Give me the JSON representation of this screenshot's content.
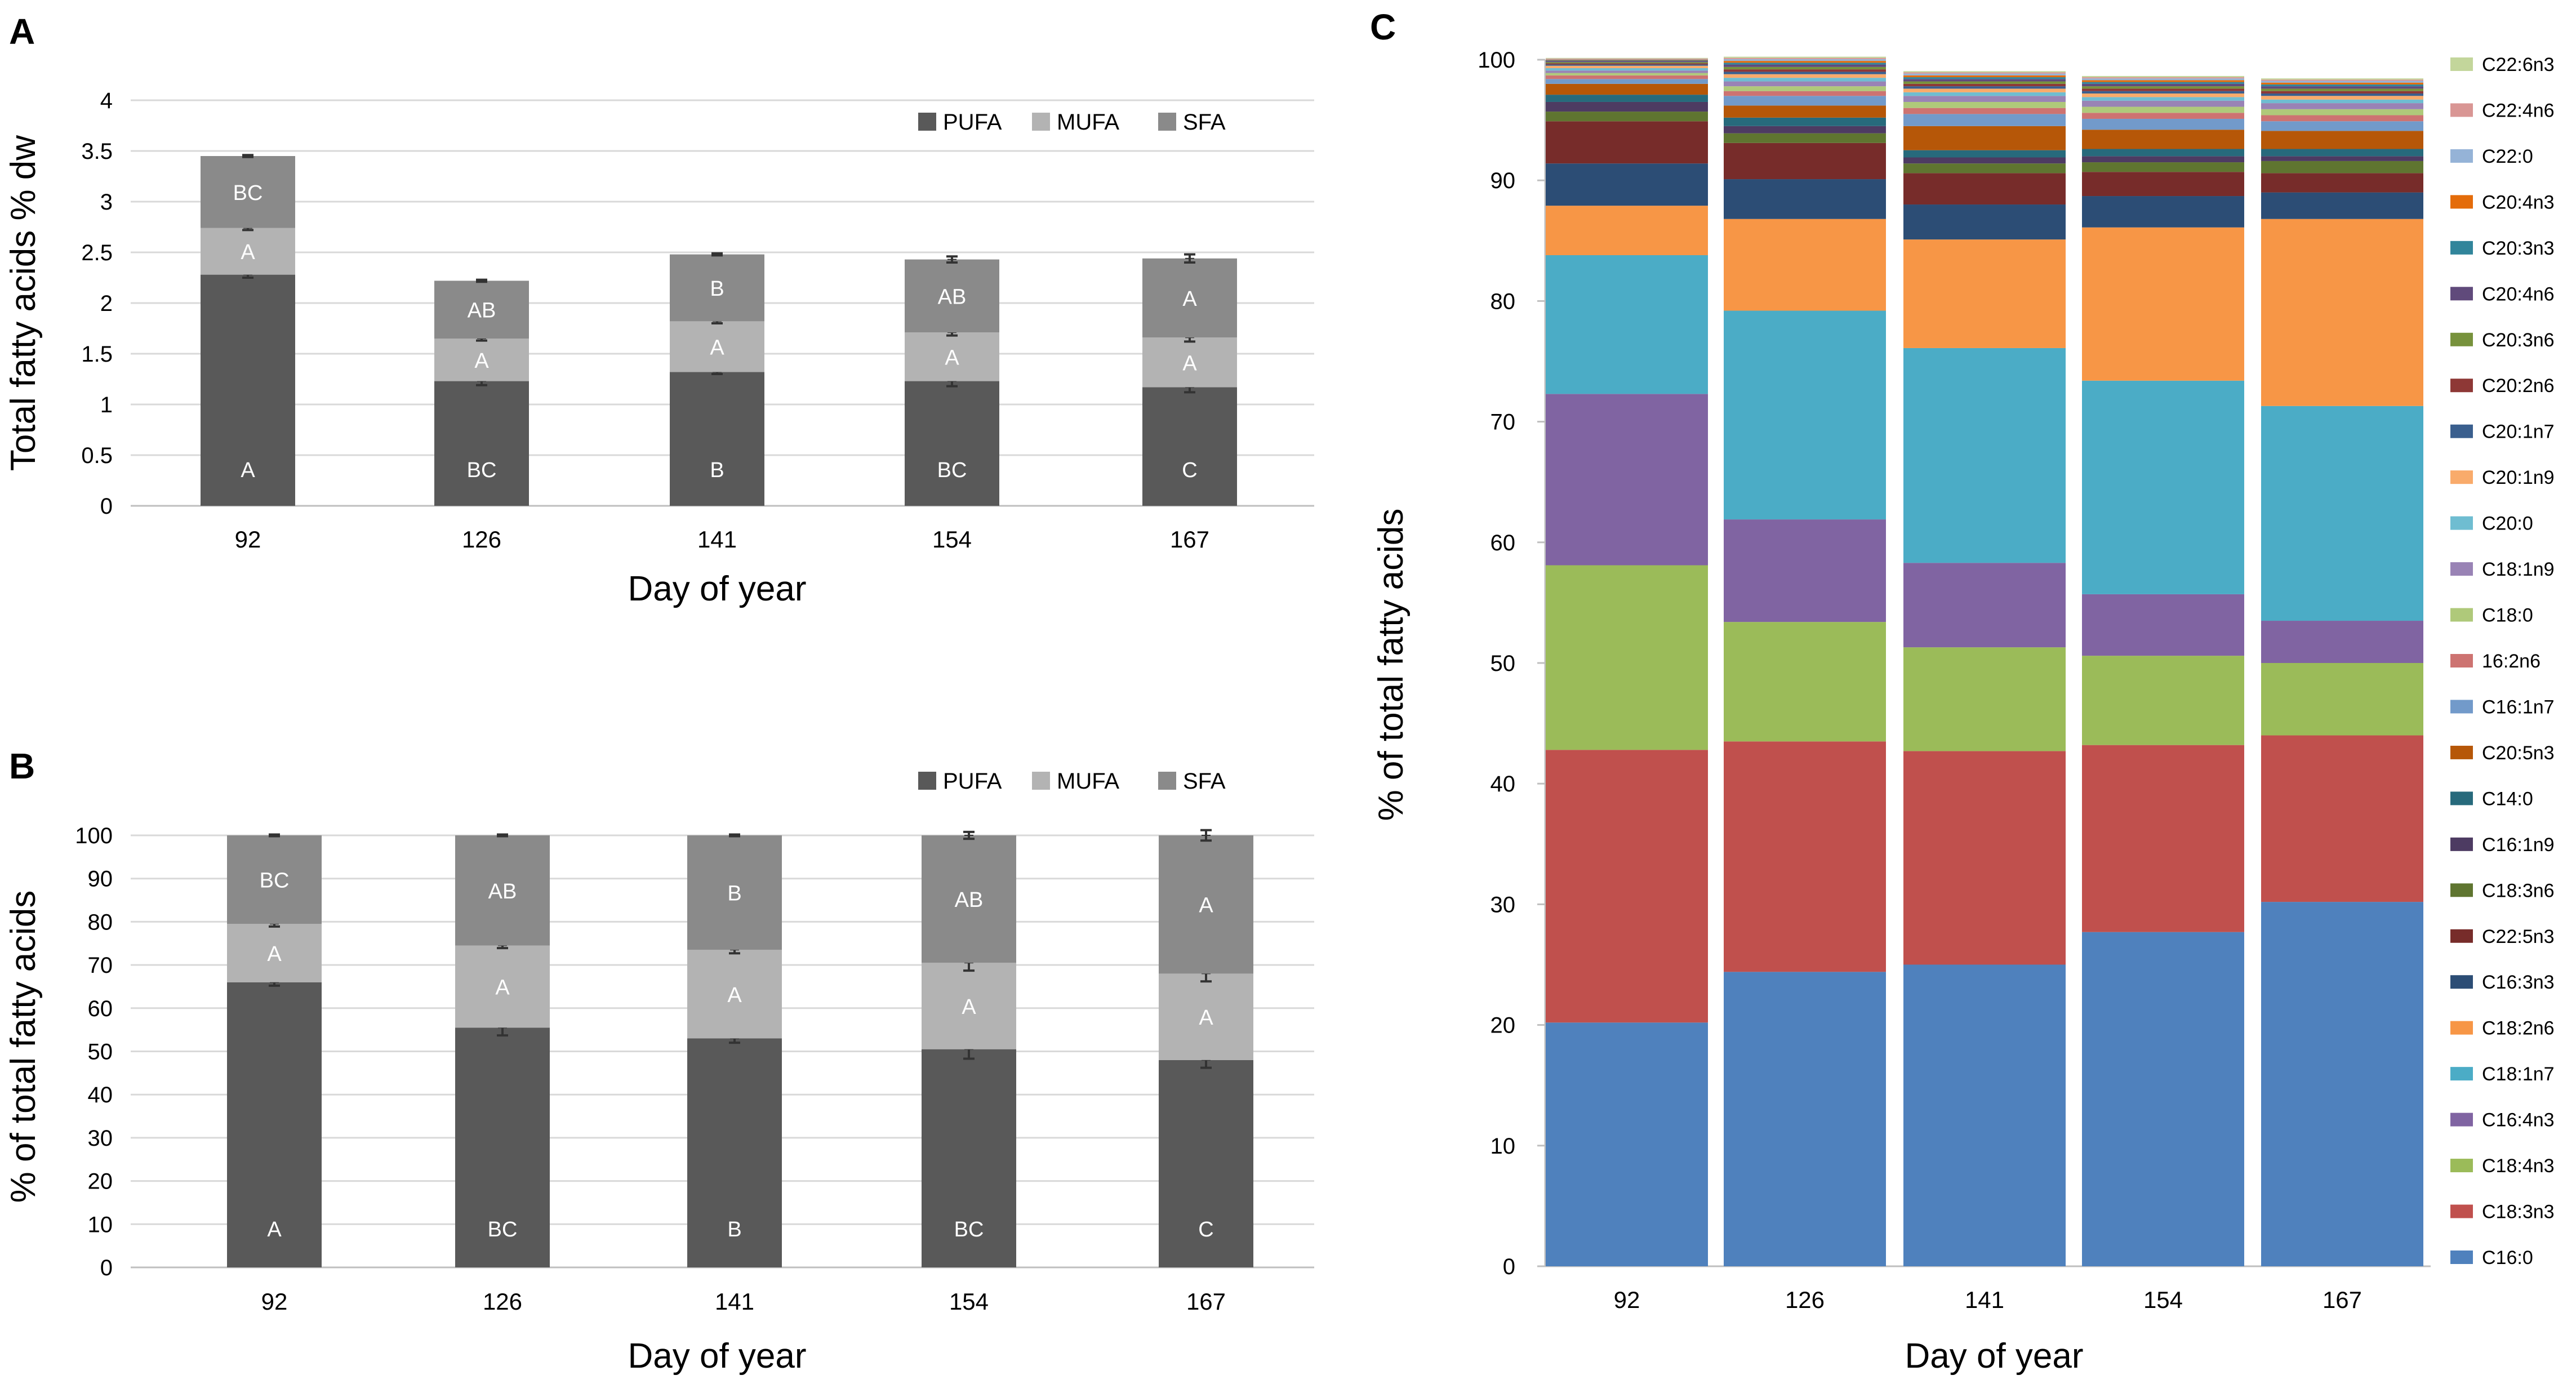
{
  "chart_data": [
    {
      "panel": "A",
      "type": "bar",
      "stacked": true,
      "categories": [
        "92",
        "126",
        "141",
        "154",
        "167"
      ],
      "series": [
        {
          "name": "PUFA",
          "values": [
            2.28,
            1.23,
            1.32,
            1.23,
            1.17
          ],
          "errors": [
            0.03,
            0.04,
            0.02,
            0.05,
            0.05
          ],
          "letters": [
            "A",
            "BC",
            "B",
            "BC",
            "C"
          ],
          "color": "#595959"
        },
        {
          "name": "MUFA",
          "values": [
            0.46,
            0.42,
            0.5,
            0.48,
            0.49
          ],
          "errors": [
            0.02,
            0.02,
            0.02,
            0.03,
            0.04
          ],
          "letters": [
            "A",
            "A",
            "A",
            "A",
            "A"
          ],
          "color": "#b3b3b3"
        },
        {
          "name": "SFA",
          "values": [
            0.71,
            0.57,
            0.66,
            0.72,
            0.78
          ],
          "errors": [
            0.01,
            0.01,
            0.01,
            0.03,
            0.04
          ],
          "letters": [
            "BC",
            "AB",
            "B",
            "AB",
            "A"
          ],
          "color": "#8a8a8a"
        }
      ],
      "xlabel": "Day of year",
      "ylabel": "Total fatty acids % dw",
      "ylim": [
        0,
        4
      ],
      "yticks": [
        "0",
        "0.5",
        "1",
        "1.5",
        "2",
        "2.5",
        "3",
        "3.5",
        "4"
      ],
      "legend": "top-right",
      "grid": true
    },
    {
      "panel": "B",
      "type": "bar",
      "stacked": true,
      "categories": [
        "92",
        "126",
        "141",
        "154",
        "167"
      ],
      "series": [
        {
          "name": "PUFA",
          "values": [
            66,
            55.5,
            53,
            50.5,
            48
          ],
          "errors": [
            0.8,
            1.8,
            1.0,
            2.2,
            1.8
          ],
          "letters": [
            "A",
            "BC",
            "B",
            "BC",
            "C"
          ],
          "color": "#595959"
        },
        {
          "name": "MUFA",
          "values": [
            13.5,
            19,
            20.5,
            20,
            20
          ],
          "errors": [
            0.6,
            0.6,
            0.8,
            1.8,
            1.8
          ],
          "letters": [
            "A",
            "A",
            "A",
            "A",
            "A"
          ],
          "color": "#b3b3b3"
        },
        {
          "name": "SFA",
          "values": [
            20.5,
            25.5,
            26.5,
            29.5,
            32
          ],
          "errors": [
            0.2,
            0.2,
            0.2,
            0.8,
            1.2
          ],
          "letters": [
            "BC",
            "AB",
            "B",
            "AB",
            "A"
          ],
          "color": "#8a8a8a"
        }
      ],
      "xlabel": "Day of year",
      "ylabel": "% of total fatty acids",
      "ylim": [
        0,
        100
      ],
      "yticks": [
        "0",
        "10",
        "20",
        "30",
        "40",
        "50",
        "60",
        "70",
        "80",
        "90",
        "100"
      ],
      "legend": "top-right",
      "grid": true
    },
    {
      "panel": "C",
      "type": "bar",
      "stacked": true,
      "categories": [
        "92",
        "126",
        "141",
        "154",
        "167"
      ],
      "series": [
        {
          "name": "C16:0",
          "values": [
            20.2,
            24.4,
            25.0,
            27.7,
            30.2
          ],
          "color": "#4f81bd"
        },
        {
          "name": "C18:3n3",
          "values": [
            22.6,
            19.1,
            17.7,
            15.5,
            13.8
          ],
          "color": "#c0504d"
        },
        {
          "name": "C18:4n3",
          "values": [
            15.3,
            9.9,
            8.6,
            7.4,
            6.0
          ],
          "color": "#9bbb59"
        },
        {
          "name": "C16:4n3",
          "values": [
            14.2,
            8.5,
            7.0,
            5.1,
            3.5
          ],
          "color": "#8064a2"
        },
        {
          "name": "C18:1n7",
          "values": [
            11.5,
            17.3,
            17.8,
            17.7,
            17.8
          ],
          "color": "#4bacc6"
        },
        {
          "name": "C18:2n6",
          "values": [
            4.1,
            7.6,
            9.0,
            12.7,
            15.5
          ],
          "color": "#f79646"
        },
        {
          "name": "C16:3n3",
          "values": [
            3.5,
            3.3,
            2.9,
            2.6,
            2.2
          ],
          "color": "#2c4d75"
        },
        {
          "name": "C22:5n3",
          "values": [
            3.5,
            3.0,
            2.6,
            2.0,
            1.6
          ],
          "color": "#772c2a"
        },
        {
          "name": "C18:3n6",
          "values": [
            0.8,
            0.8,
            0.8,
            0.8,
            1.0
          ],
          "color": "#5f7530"
        },
        {
          "name": "C16:1n9",
          "values": [
            0.8,
            0.6,
            0.5,
            0.5,
            0.4
          ],
          "color": "#4d3b62"
        },
        {
          "name": "C14:0",
          "values": [
            0.6,
            0.7,
            0.6,
            0.6,
            0.6
          ],
          "color": "#276a7c"
        },
        {
          "name": "C20:5n3",
          "values": [
            0.9,
            1.0,
            2.0,
            1.6,
            1.5
          ],
          "color": "#b65708"
        },
        {
          "name": "C16:1n7",
          "values": [
            0.4,
            0.8,
            1.0,
            0.9,
            0.8
          ],
          "color": "#729aca"
        },
        {
          "name": "16:2n6",
          "values": [
            0.3,
            0.4,
            0.5,
            0.5,
            0.5
          ],
          "color": "#cd7371"
        },
        {
          "name": "C18:0",
          "values": [
            0.2,
            0.4,
            0.5,
            0.5,
            0.5
          ],
          "color": "#afc97a"
        },
        {
          "name": "C18:1n9",
          "values": [
            0.2,
            0.4,
            0.5,
            0.5,
            0.5
          ],
          "color": "#9983b5"
        },
        {
          "name": "C20:0",
          "values": [
            0.2,
            0.3,
            0.3,
            0.3,
            0.3
          ],
          "color": "#6fbdd1"
        },
        {
          "name": "C20:1n9",
          "values": [
            0.2,
            0.3,
            0.3,
            0.3,
            0.3
          ],
          "color": "#f9ab6b"
        },
        {
          "name": "C20:1n7",
          "values": [
            0.1,
            0.2,
            0.2,
            0.2,
            0.2
          ],
          "color": "#3a5f8e"
        },
        {
          "name": "C20:2n6",
          "values": [
            0.1,
            0.2,
            0.2,
            0.2,
            0.2
          ],
          "color": "#8e3836"
        },
        {
          "name": "C20:3n6",
          "values": [
            0.1,
            0.2,
            0.2,
            0.2,
            0.2
          ],
          "color": "#77923c"
        },
        {
          "name": "C20:4n6",
          "values": [
            0.1,
            0.2,
            0.2,
            0.2,
            0.2
          ],
          "color": "#604a7b"
        },
        {
          "name": "C20:3n3",
          "values": [
            0.05,
            0.15,
            0.15,
            0.15,
            0.15
          ],
          "color": "#31859b"
        },
        {
          "name": "C20:4n3",
          "values": [
            0.05,
            0.15,
            0.15,
            0.15,
            0.15
          ],
          "color": "#e46c0a"
        },
        {
          "name": "C22:0",
          "values": [
            0.05,
            0.15,
            0.15,
            0.15,
            0.15
          ],
          "color": "#95b3d7"
        },
        {
          "name": "C22:4n6",
          "values": [
            0.05,
            0.1,
            0.1,
            0.1,
            0.1
          ],
          "color": "#d99694"
        },
        {
          "name": "C22:6n3",
          "values": [
            0.05,
            0.1,
            0.1,
            0.1,
            0.1
          ],
          "color": "#c3d69b"
        }
      ],
      "xlabel": "Day of year",
      "ylabel": "% of total fatty acids",
      "ylim": [
        0,
        100
      ],
      "yticks": [
        "0",
        "10",
        "20",
        "30",
        "40",
        "50",
        "60",
        "70",
        "80",
        "90",
        "100"
      ],
      "legend": "right",
      "grid": false
    }
  ],
  "panels": {
    "a": {
      "letter": "A"
    },
    "b": {
      "letter": "B"
    },
    "c": {
      "letter": "C"
    }
  }
}
